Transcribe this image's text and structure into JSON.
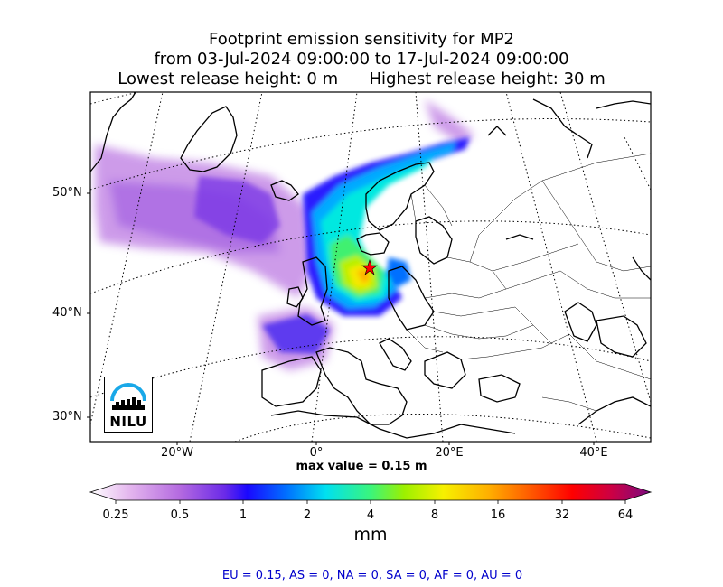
{
  "title": {
    "line1": "Footprint emission sensitivity for MP2",
    "line2": "from 03-Jul-2024 09:00:00 to 17-Jul-2024 09:00:00",
    "line3": "Lowest release height: 0 m      Highest release height: 30 m"
  },
  "map": {
    "lat_labels": [
      "50°N",
      "40°N",
      "30°N"
    ],
    "lon_labels": [
      "20°W",
      "0°",
      "20°E",
      "40°E"
    ],
    "max_value_text": "max value = 0.15 m",
    "logo_text": "NILU"
  },
  "colorbar": {
    "ticks": [
      "0.25",
      "0.5",
      "1",
      "2",
      "4",
      "8",
      "16",
      "32",
      "64"
    ],
    "units": "mm",
    "colors": [
      "#ffffff",
      "#e4b6ee",
      "#c17ae0",
      "#8a3ae0",
      "#2c0bff",
      "#0066ff",
      "#00d8ff",
      "#3af57c",
      "#9cf000",
      "#f6f000",
      "#ffb000",
      "#ff6000",
      "#ff0000",
      "#cc0044",
      "#7a0a80"
    ]
  },
  "regions_text": "EU = 0.15,  AS = 0,  NA = 0,  SA = 0,  AF = 0,  AU = 0",
  "colors": {
    "regions_text": "#0000cc",
    "release_star": "#ff0000"
  }
}
